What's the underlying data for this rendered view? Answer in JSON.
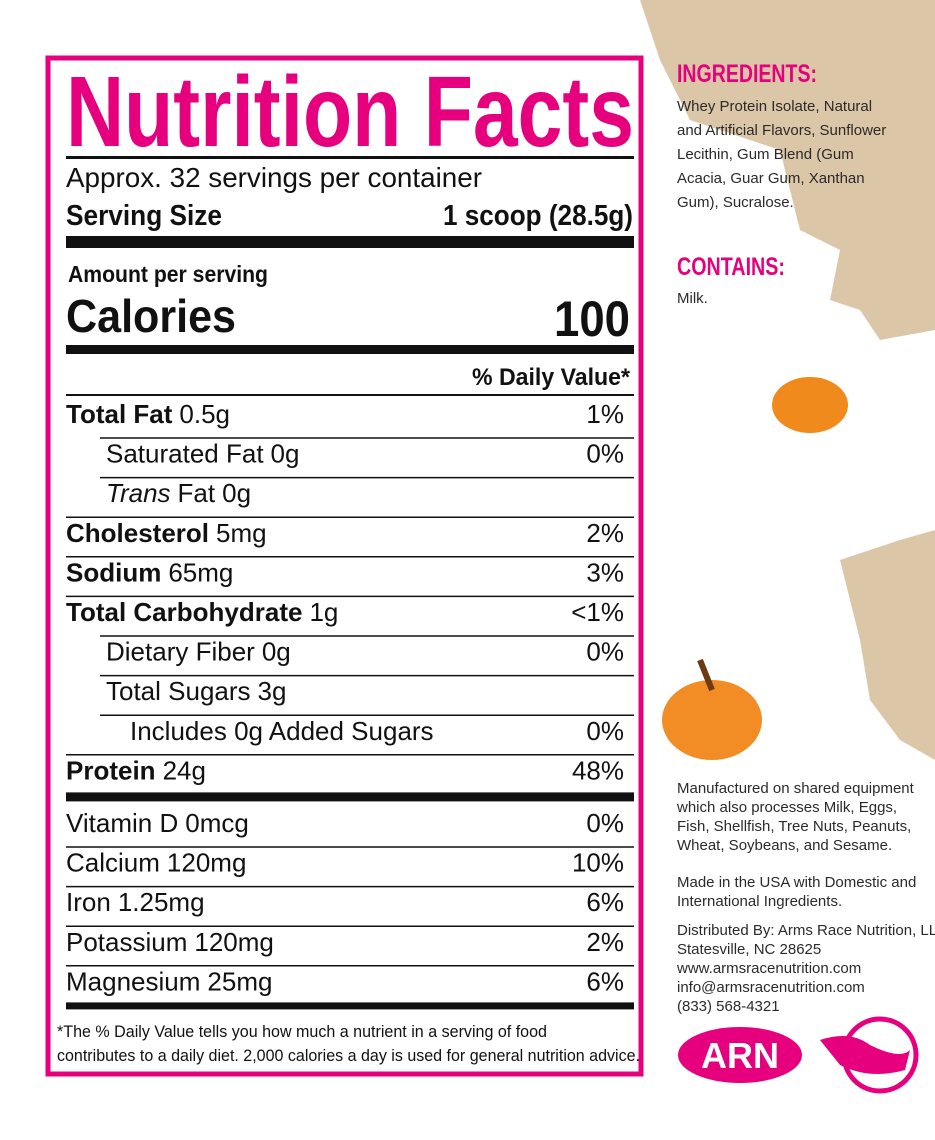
{
  "label": {
    "title": "Nutrition Facts",
    "servings": "Approx. 32 servings per container",
    "serving_size_label": "Serving Size",
    "serving_size": "1 scoop (28.5g)",
    "amount_per_serving": "Amount per serving",
    "calories_label": "Calories",
    "calories": "100",
    "dv_header": "% Daily Value*",
    "nutrients": [
      {
        "name": "Total Fat",
        "amount": "0.5g",
        "dv": "1%",
        "sub": [
          {
            "name": "Saturated Fat",
            "amount": "0g",
            "dv": "0%"
          },
          {
            "name_italic": "Trans",
            "name": "Fat",
            "amount": "0g"
          }
        ]
      },
      {
        "name": "Cholesterol",
        "amount": "5mg",
        "dv": "2%"
      },
      {
        "name": "Sodium",
        "amount": "65mg",
        "dv": "3%"
      },
      {
        "name": "Total Carbohydrate",
        "amount": "1g",
        "dv": "<1%",
        "sub": [
          {
            "name": "Dietary Fiber",
            "amount": "0g",
            "dv": "0%"
          },
          {
            "name": "Total Sugars",
            "amount": "3g",
            "sub": [
              {
                "name": "Includes 0g Added Sugars",
                "dv": "0%"
              }
            ]
          }
        ]
      },
      {
        "name": "Protein",
        "amount": "24g",
        "dv": "48%"
      }
    ],
    "vitamins": [
      {
        "name": "Vitamin D",
        "amount": "0mcg",
        "dv": "0%"
      },
      {
        "name": "Calcium",
        "amount": "120mg",
        "dv": "10%"
      },
      {
        "name": "Iron",
        "amount": "1.25mg",
        "dv": "6%"
      },
      {
        "name": "Potassium",
        "amount": "120mg",
        "dv": "2%"
      },
      {
        "name": "Magnesium",
        "amount": "25mg",
        "dv": "6%"
      }
    ],
    "footnote": [
      "*The % Daily Value tells you how much a nutrient in a serving of food",
      "contributes to a daily diet. 2,000 calories a day is used for general nutrition advice."
    ]
  },
  "side": {
    "ingredients_title": "INGREDIENTS:",
    "ingredients": [
      "Whey Protein Isolate, Natural",
      "and Artificial Flavors, Sunflower",
      "Lecithin, Gum Blend (Gum",
      "Acacia, Guar Gum, Xanthan",
      "Gum), Sucralose."
    ],
    "contains_title": "CONTAINS:",
    "contains": "Milk.",
    "allergen": [
      "Manufactured on shared equipment",
      "which also processes Milk, Eggs,",
      "Fish, Shellfish, Tree Nuts, Peanuts,",
      "Wheat, Soybeans, and Sesame."
    ],
    "made_in": [
      "Made in the USA with Domestic and",
      "International Ingredients."
    ],
    "distributor": [
      "Distributed By: Arms Race Nutrition, LLC",
      "Statesville, NC 28625",
      "www.armsracenutrition.com",
      "info@armsracenutrition.com",
      "(833) 568-4321"
    ],
    "logo": "ARN"
  }
}
